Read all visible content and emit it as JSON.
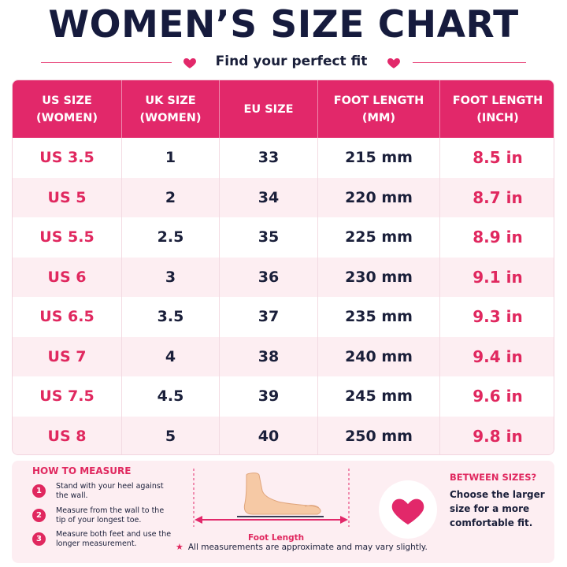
{
  "header": {
    "title": "WOMEN’S SIZE CHART",
    "subtitle": "Find your perfect fit"
  },
  "colors": {
    "accent": "#e2286a",
    "navy": "#161b3d",
    "row_alt": "#fdeef2"
  },
  "table": {
    "columns": [
      "US SIZE\n(WOMEN)",
      "UK SIZE\n(WOMEN)",
      "EU SIZE",
      "FOOT LENGTH\n(MM)",
      "FOOT LENGTH\n(INCH)"
    ],
    "rows": [
      [
        "US 3.5",
        "1",
        "33",
        "215 mm",
        "8.5 in"
      ],
      [
        "US 5",
        "2",
        "34",
        "220 mm",
        "8.7 in"
      ],
      [
        "US 5.5",
        "2.5",
        "35",
        "225 mm",
        "8.9 in"
      ],
      [
        "US 6",
        "3",
        "36",
        "230 mm",
        "9.1 in"
      ],
      [
        "US 6.5",
        "3.5",
        "37",
        "235 mm",
        "9.3 in"
      ],
      [
        "US 7",
        "4",
        "38",
        "240 mm",
        "9.4 in"
      ],
      [
        "US 7.5",
        "4.5",
        "39",
        "245 mm",
        "9.6 in"
      ],
      [
        "US 8",
        "5",
        "40",
        "250 mm",
        "9.8 in"
      ]
    ]
  },
  "how_to": {
    "title": "HOW TO MEASURE",
    "steps": [
      {
        "num": "1",
        "text": "Stand with your heel against the wall."
      },
      {
        "num": "2",
        "text": "Measure from the wall to the tip of your longest toe."
      },
      {
        "num": "3",
        "text": "Measure both feet and use the longer measurement."
      }
    ],
    "foot_label": "Foot Length"
  },
  "between": {
    "title": "BETWEEN SIZES?",
    "text": "Choose the larger size for a more comfortable fit."
  },
  "note": "All measurements are approximate and may vary slightly.",
  "icons": {
    "heart": "heart-icon",
    "star": "star-icon",
    "foot": "foot-icon"
  }
}
